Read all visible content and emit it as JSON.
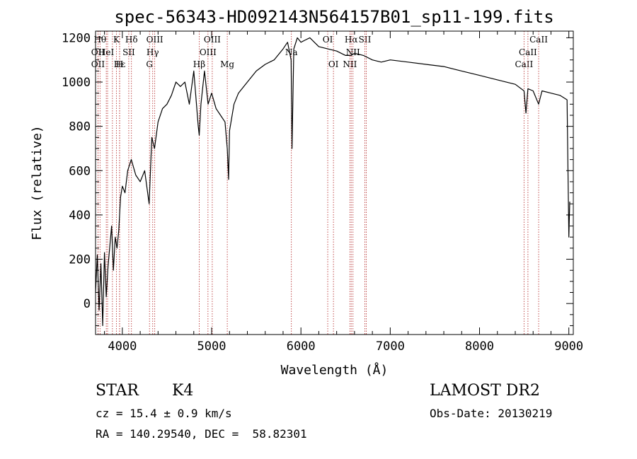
{
  "chart_data": {
    "type": "line",
    "title": "spec-56343-HD092143N564157B01_sp11-199.fits",
    "xlabel": "Wavelength (Å)",
    "ylabel": "Flux (relative)",
    "xlim": [
      3700,
      9050
    ],
    "ylim": [
      -140,
      1230
    ],
    "xticks": [
      4000,
      5000,
      6000,
      7000,
      8000,
      9000
    ],
    "yticks": [
      0,
      200,
      400,
      600,
      800,
      1000,
      1200
    ],
    "grid": false,
    "legend": "none",
    "line_color": "#000000",
    "marker_color": "#b22222",
    "series": [
      {
        "x": [
          3700,
          3720,
          3740,
          3760,
          3780,
          3800,
          3820,
          3840,
          3860,
          3880,
          3900,
          3920,
          3940,
          3960,
          3980,
          4000,
          4030,
          4060,
          4100,
          4150,
          4200,
          4250,
          4300,
          4330,
          4360,
          4400,
          4450,
          4500,
          4550,
          4600,
          4650,
          4700,
          4750,
          4800,
          4850,
          4861,
          4880,
          4920,
          4960,
          5000,
          5050,
          5100,
          5150,
          5175,
          5190,
          5200,
          5250,
          5300,
          5400,
          5500,
          5600,
          5700,
          5800,
          5850,
          5890,
          5900,
          5920,
          5960,
          6000,
          6050,
          6100,
          6200,
          6300,
          6400,
          6500,
          6563,
          6600,
          6700,
          6800,
          6900,
          7000,
          7200,
          7400,
          7600,
          7800,
          8000,
          8200,
          8400,
          8498,
          8520,
          8542,
          8600,
          8662,
          8700,
          8800,
          8900,
          8980,
          9000,
          9010
        ],
        "y": [
          50,
          220,
          -30,
          180,
          -100,
          230,
          30,
          170,
          260,
          350,
          150,
          300,
          250,
          330,
          480,
          530,
          500,
          600,
          650,
          580,
          550,
          600,
          450,
          750,
          700,
          820,
          880,
          900,
          940,
          1000,
          980,
          1000,
          900,
          1050,
          800,
          760,
          900,
          1050,
          900,
          950,
          880,
          850,
          820,
          700,
          560,
          780,
          900,
          950,
          1000,
          1050,
          1080,
          1100,
          1150,
          1180,
          1100,
          700,
          1150,
          1200,
          1180,
          1190,
          1200,
          1160,
          1150,
          1140,
          1120,
          1120,
          1130,
          1120,
          1100,
          1090,
          1100,
          1090,
          1080,
          1070,
          1050,
          1030,
          1010,
          990,
          960,
          860,
          970,
          960,
          900,
          960,
          950,
          940,
          920,
          300,
          460
        ]
      }
    ],
    "line_markers": [
      {
        "x": 3750,
        "label": "Hθ",
        "row": 0
      },
      {
        "x": 3727,
        "label": "OII",
        "row": 1
      },
      {
        "x": 3727,
        "label": "OII",
        "row": 2
      },
      {
        "x": 3835,
        "label": "",
        "row": 0
      },
      {
        "x": 3889,
        "label": "",
        "row": 0
      },
      {
        "x": 3934,
        "label": "K",
        "row": 0
      },
      {
        "x": 3970,
        "label": "Hε",
        "row": 2
      },
      {
        "x": 3969,
        "label": "H",
        "row": 2
      },
      {
        "x": 3820,
        "label": "HeI",
        "row": 1
      },
      {
        "x": 4072,
        "label": "SII",
        "row": 1
      },
      {
        "x": 4102,
        "label": "Hδ",
        "row": 0
      },
      {
        "x": 4304,
        "label": "G",
        "row": 2
      },
      {
        "x": 4340,
        "label": "Hγ",
        "row": 1
      },
      {
        "x": 4363,
        "label": "OIII",
        "row": 0
      },
      {
        "x": 4861,
        "label": "Hβ",
        "row": 2
      },
      {
        "x": 4959,
        "label": "OIII",
        "row": 1
      },
      {
        "x": 5007,
        "label": "OIII",
        "row": 0
      },
      {
        "x": 5175,
        "label": "Mg",
        "row": 2
      },
      {
        "x": 5893,
        "label": "Na",
        "row": 1
      },
      {
        "x": 6300,
        "label": "OI",
        "row": 0
      },
      {
        "x": 6364,
        "label": "OI",
        "row": 2
      },
      {
        "x": 6548,
        "label": "NII",
        "row": 2
      },
      {
        "x": 6563,
        "label": "Hα",
        "row": 0
      },
      {
        "x": 6583,
        "label": "NII",
        "row": 1
      },
      {
        "x": 6716,
        "label": "SII",
        "row": 0
      },
      {
        "x": 6731,
        "label": "",
        "row": 0
      },
      {
        "x": 8498,
        "label": "CaII",
        "row": 2
      },
      {
        "x": 8542,
        "label": "CaII",
        "row": 1
      },
      {
        "x": 8662,
        "label": "CaII",
        "row": 0
      }
    ]
  },
  "info": {
    "object_class": "STAR",
    "subclass": "K4",
    "cz": "cz = 15.4 ± 0.9 km/s",
    "coords": "RA = 140.29540, DEC =  58.82301",
    "survey": "LAMOST DR2",
    "obs_date": "Obs-Date: 20130219"
  }
}
